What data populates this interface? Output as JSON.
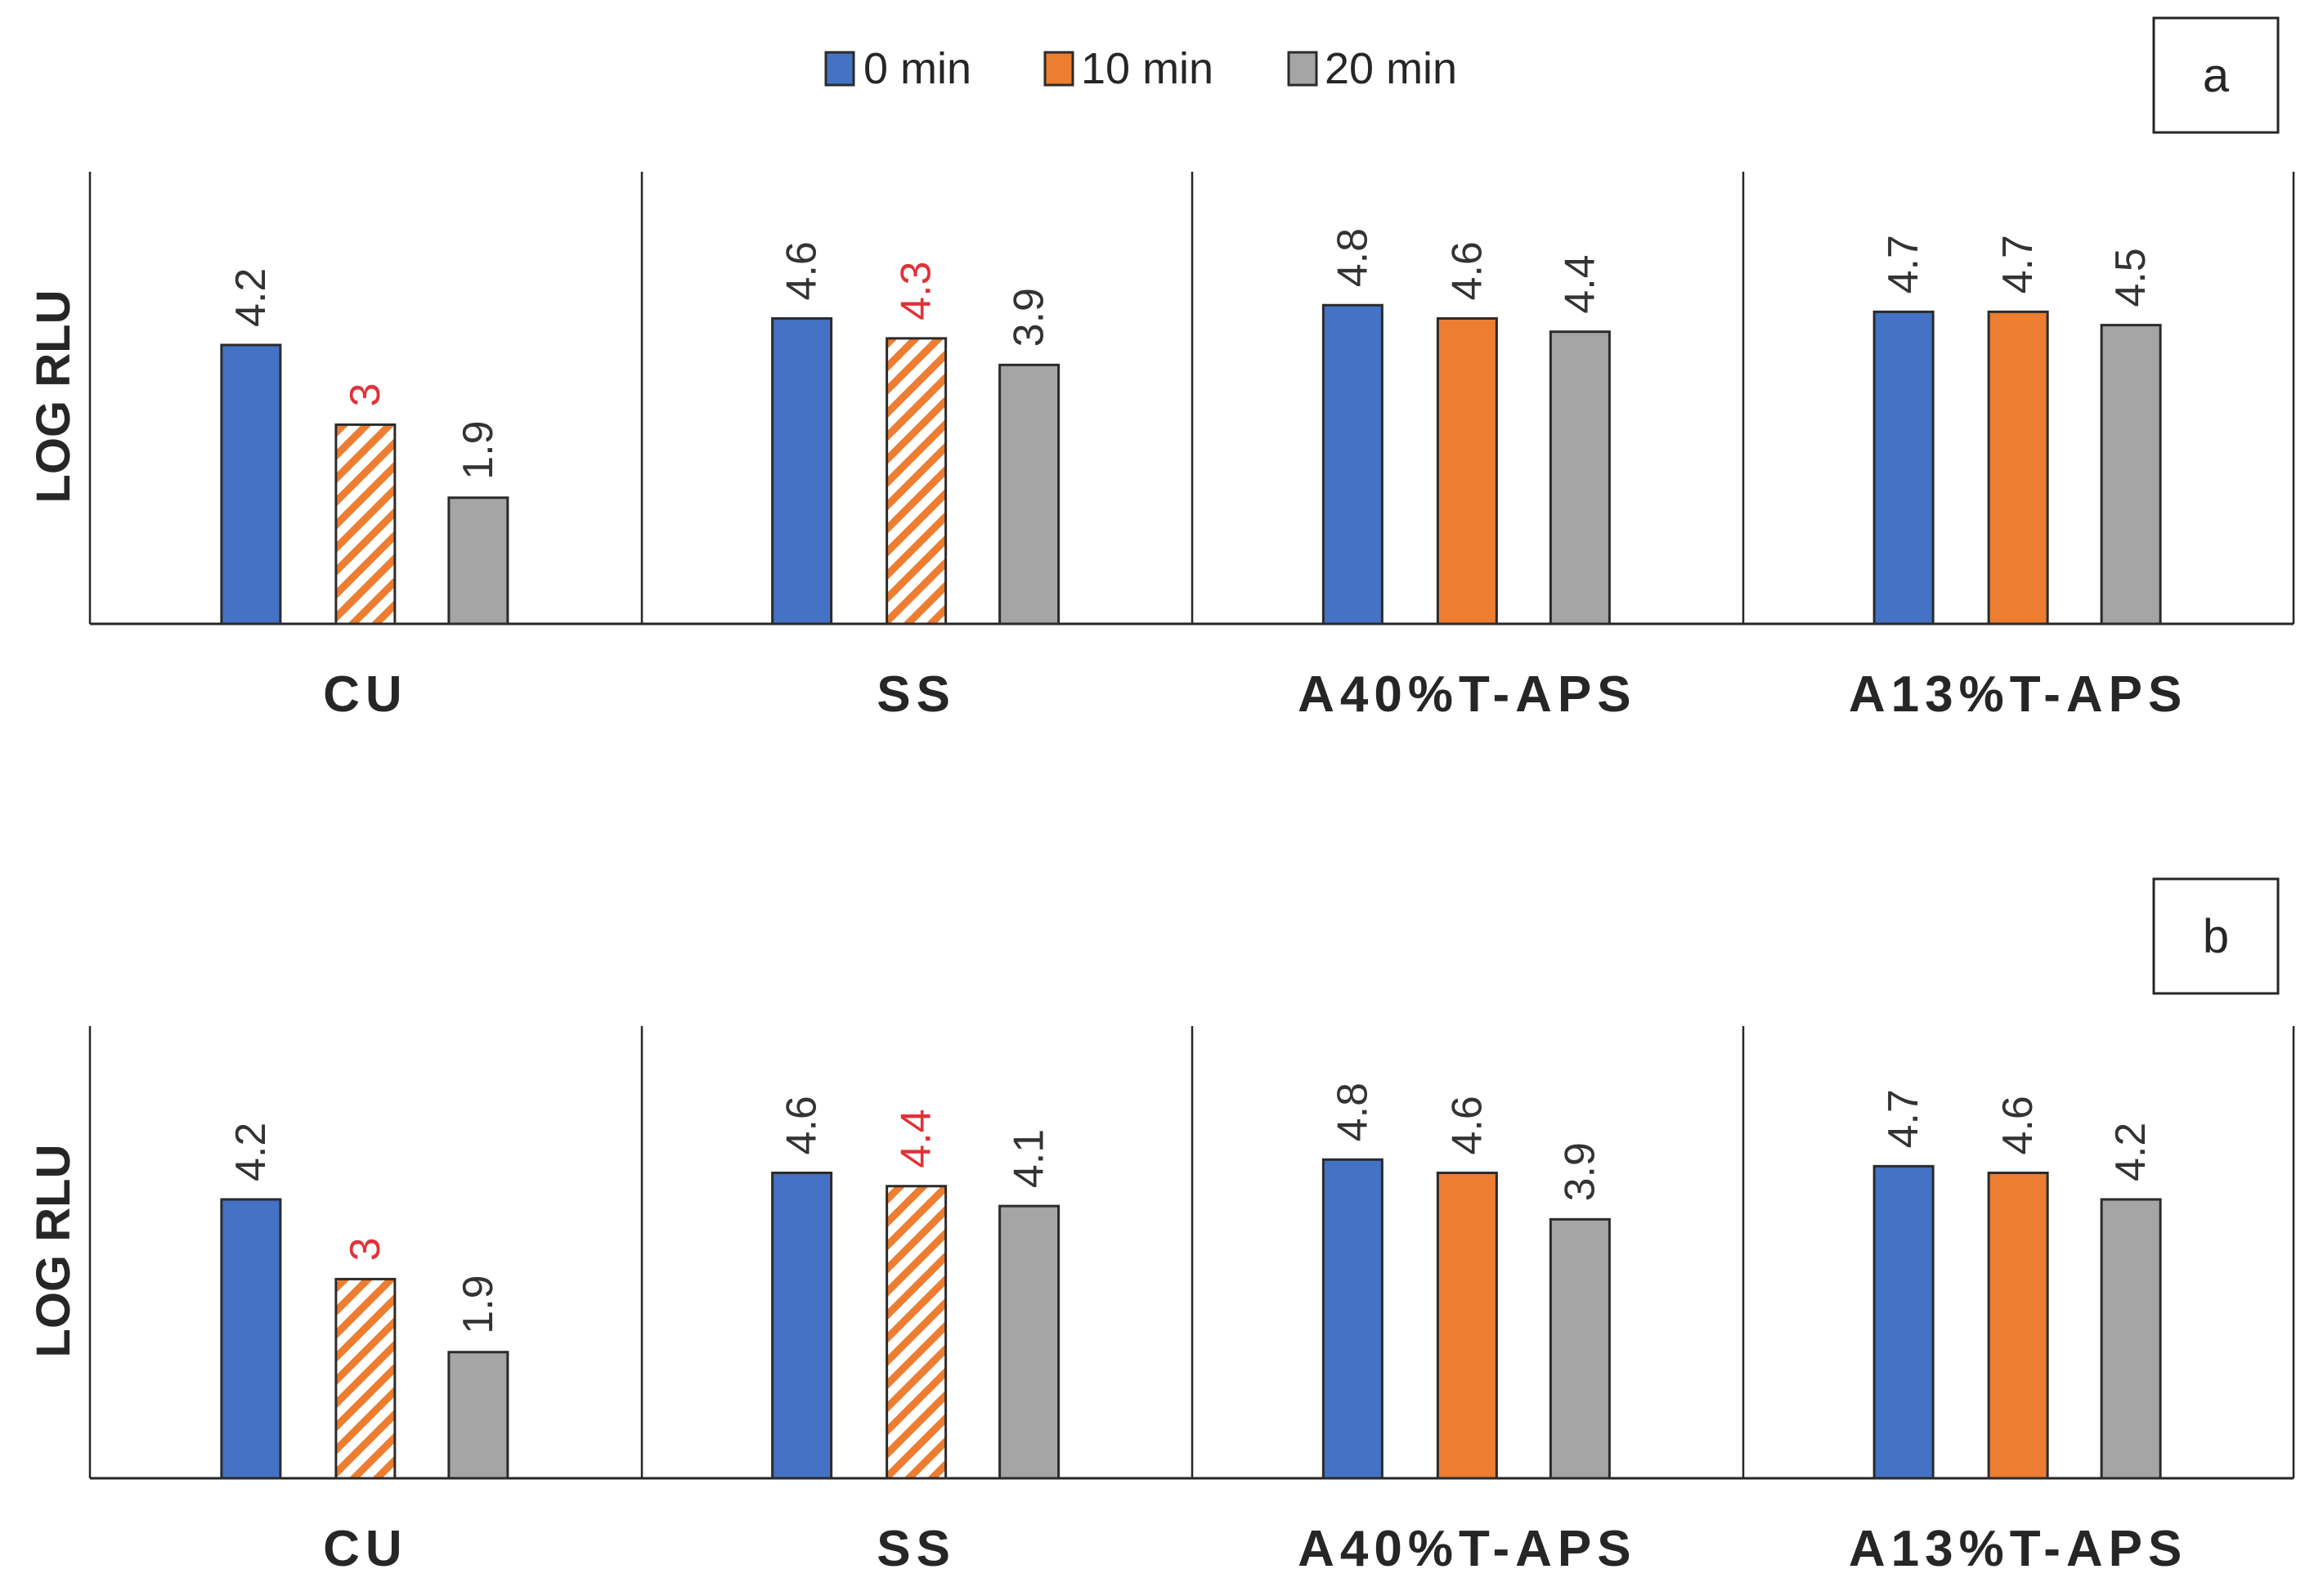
{
  "legend": [
    {
      "label": "0 min",
      "color": "#4472c4"
    },
    {
      "label": "10 min",
      "color": "#ed7d31"
    },
    {
      "label": "20 min",
      "color": "#a5a5a5"
    }
  ],
  "highlight_color": "#e0323a",
  "chart_data": [
    {
      "type": "bar",
      "panel_tag": "a",
      "ylabel": "LOG RLU",
      "xlabel": "",
      "ylim": [
        0,
        5.5
      ],
      "grid": false,
      "categories": [
        "CU",
        "SS",
        "A40%T-APS",
        "A13%T-APS"
      ],
      "series": [
        {
          "name": "0 min",
          "values": [
            4.2,
            4.6,
            4.8,
            4.7
          ],
          "labels": [
            "4.2",
            "4.6",
            "4.8",
            "4.7"
          ]
        },
        {
          "name": "10 min",
          "values": [
            3.0,
            4.3,
            4.6,
            4.7
          ],
          "labels": [
            "3",
            "4.3",
            "4.6",
            "4.7"
          ],
          "hatched": [
            true,
            true,
            false,
            false
          ]
        },
        {
          "name": "20 min",
          "values": [
            1.9,
            3.9,
            4.4,
            4.5
          ],
          "labels": [
            "1.9",
            "3.9",
            "4.4",
            "4.5"
          ]
        }
      ]
    },
    {
      "type": "bar",
      "panel_tag": "b",
      "ylabel": "LOG RLU",
      "xlabel": "",
      "ylim": [
        0,
        5.5
      ],
      "grid": false,
      "categories": [
        "CU",
        "SS",
        "A40%T-APS",
        "A13%T-APS"
      ],
      "series": [
        {
          "name": "0 min",
          "values": [
            4.2,
            4.6,
            4.8,
            4.7
          ],
          "labels": [
            "4.2",
            "4.6",
            "4.8",
            "4.7"
          ]
        },
        {
          "name": "10 min",
          "values": [
            3.0,
            4.4,
            4.6,
            4.6
          ],
          "labels": [
            "3",
            "4.4",
            "4.6",
            "4.6"
          ],
          "hatched": [
            true,
            true,
            false,
            false
          ]
        },
        {
          "name": "20 min",
          "values": [
            1.9,
            4.1,
            3.9,
            4.2
          ],
          "labels": [
            "1.9",
            "4.1",
            "3.9",
            "4.2"
          ]
        }
      ]
    }
  ]
}
